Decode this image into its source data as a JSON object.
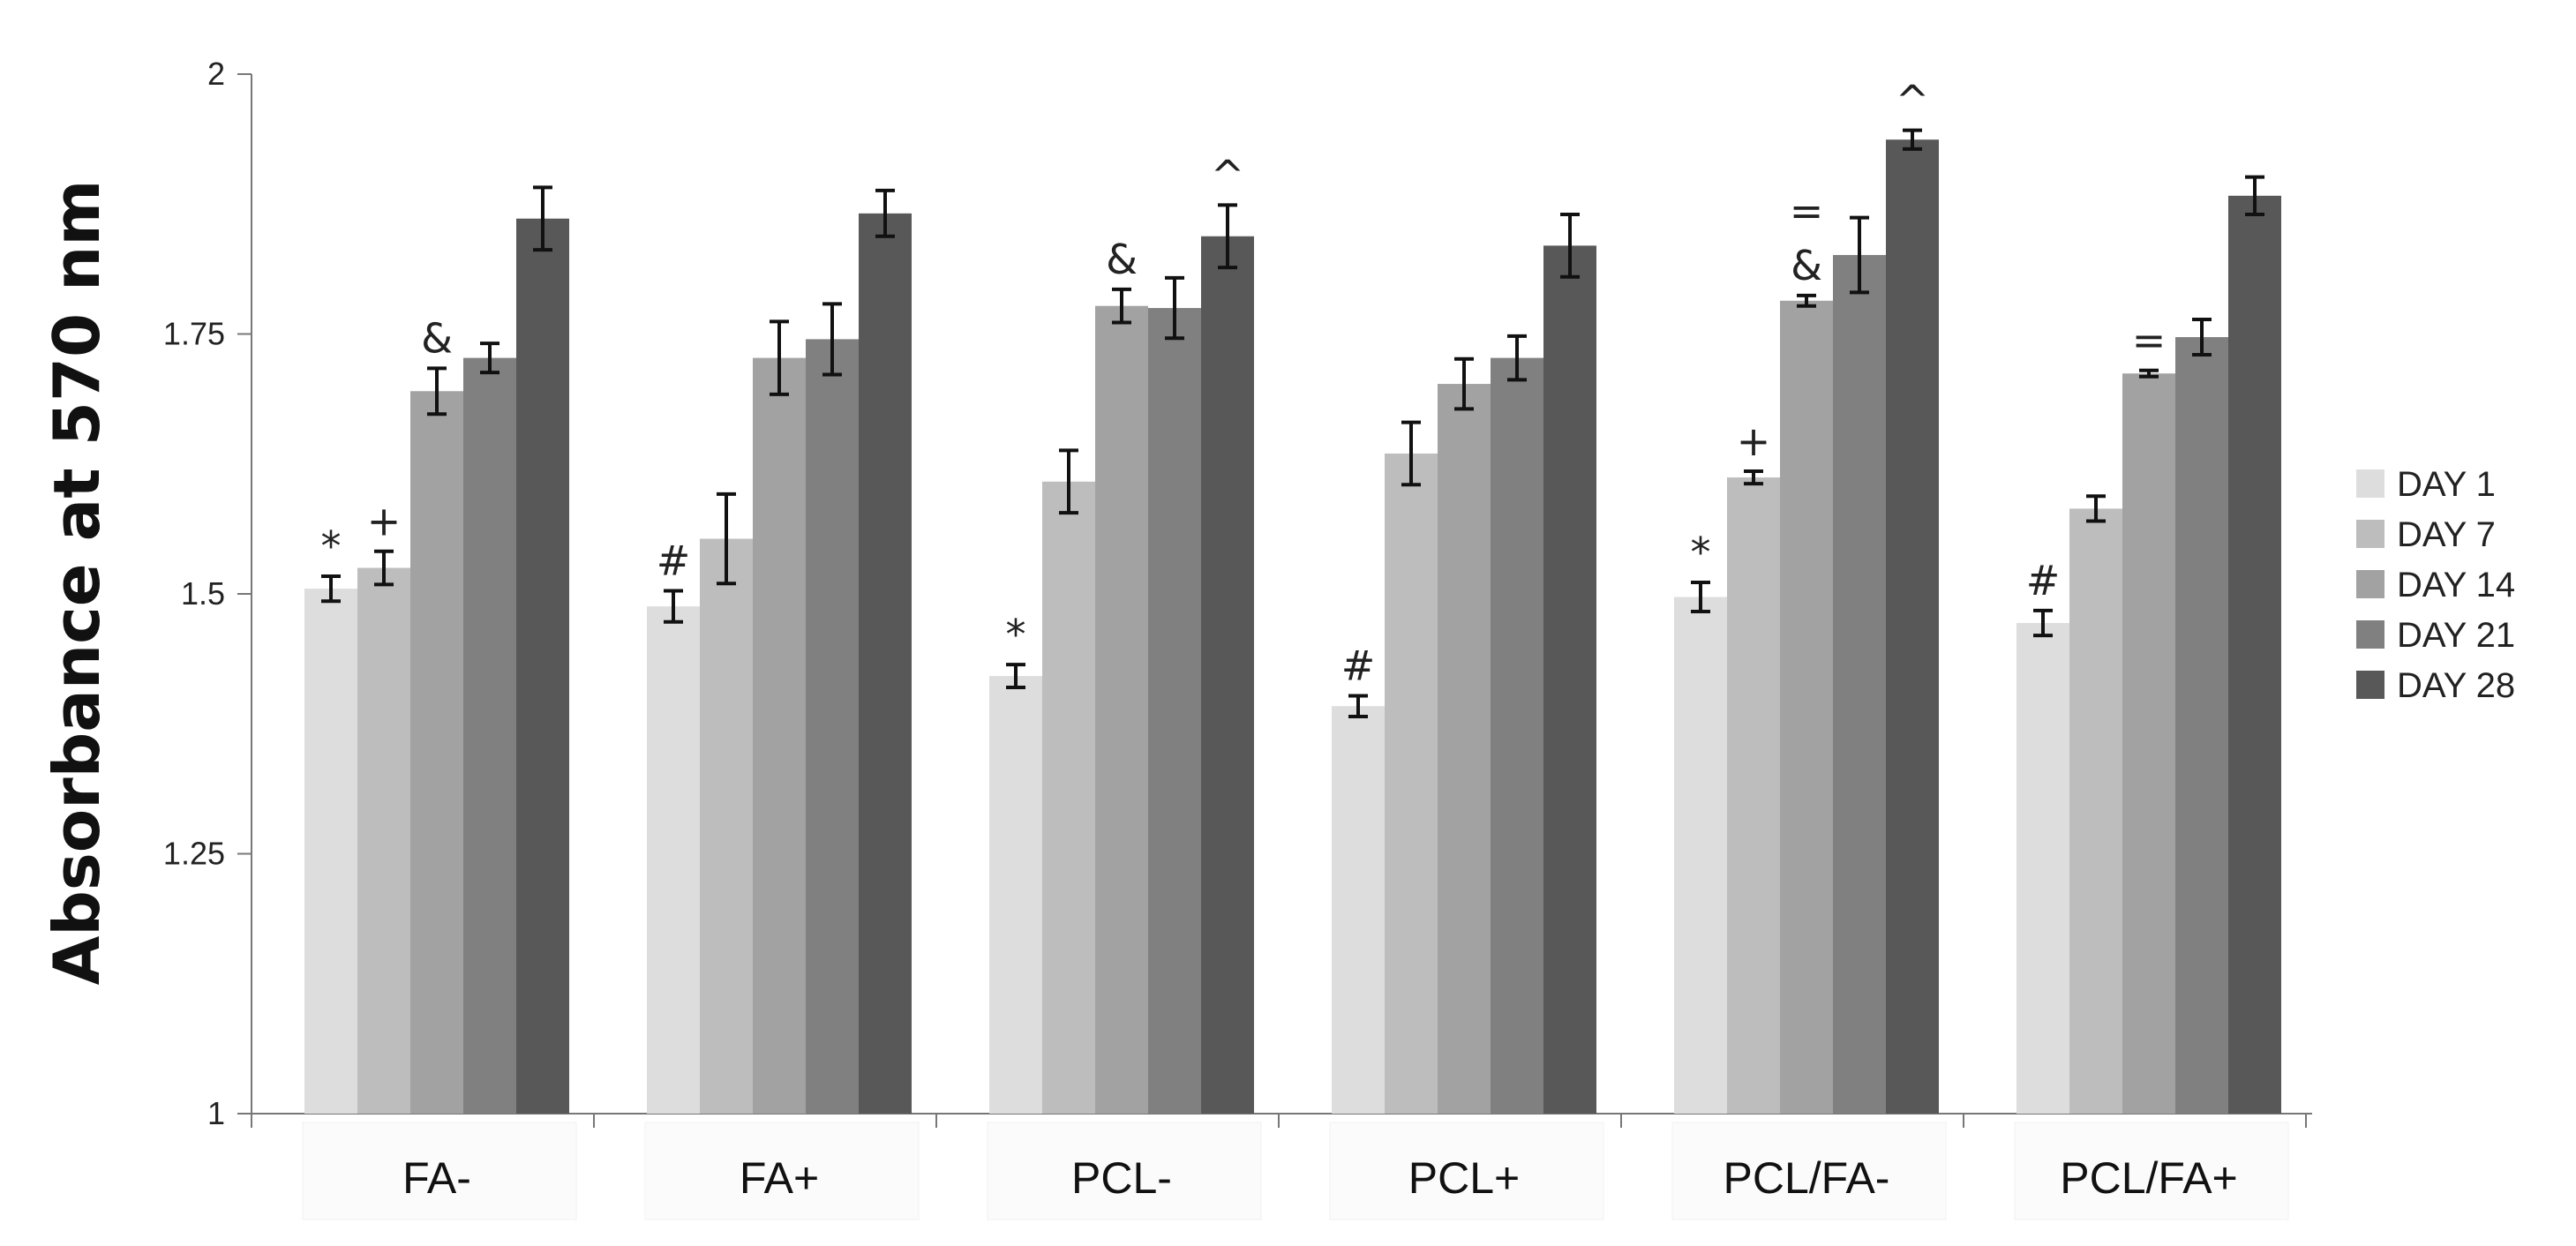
{
  "chart_data": {
    "type": "bar",
    "title": "",
    "xlabel": "",
    "ylabel": "Absorbance at 570 nm",
    "ylim": [
      1,
      2
    ],
    "yticks": [
      1,
      1.25,
      1.5,
      1.75,
      2
    ],
    "ytick_labels": [
      "1",
      "1.25",
      "1.5",
      "1.75",
      "2"
    ],
    "grid": false,
    "legend_position": "right",
    "categories": [
      "FA-",
      "FA+",
      "PCL-",
      "PCL+",
      "PCL/FA-",
      "PCL/FA+"
    ],
    "series": [
      {
        "name": "DAY 1",
        "color": "#dddddd",
        "values": [
          1.505,
          1.488,
          1.421,
          1.392,
          1.497,
          1.472
        ],
        "errors": [
          0.012,
          0.015,
          0.011,
          0.01,
          0.014,
          0.012
        ]
      },
      {
        "name": "DAY 7",
        "color": "#bdbdbd",
        "values": [
          1.525,
          1.553,
          1.608,
          1.635,
          1.612,
          1.582
        ],
        "errors": [
          0.016,
          0.043,
          0.03,
          0.03,
          0.006,
          0.012
        ]
      },
      {
        "name": "DAY 14",
        "color": "#a2a2a2",
        "values": [
          1.695,
          1.727,
          1.777,
          1.702,
          1.782,
          1.712
        ],
        "errors": [
          0.022,
          0.035,
          0.016,
          0.024,
          0.005,
          0.003
        ]
      },
      {
        "name": "DAY 21",
        "color": "#808080",
        "values": [
          1.727,
          1.745,
          1.775,
          1.727,
          1.826,
          1.747
        ],
        "errors": [
          0.014,
          0.034,
          0.029,
          0.021,
          0.036,
          0.017
        ]
      },
      {
        "name": "DAY 28",
        "color": "#585858",
        "values": [
          1.861,
          1.866,
          1.844,
          1.835,
          1.937,
          1.883
        ],
        "errors": [
          0.03,
          0.022,
          0.03,
          0.03,
          0.009,
          0.018
        ]
      }
    ],
    "annotations": [
      {
        "text": "*",
        "category": 0,
        "series": 0
      },
      {
        "text": "+",
        "category": 0,
        "series": 1
      },
      {
        "text": "&",
        "category": 0,
        "series": 2
      },
      {
        "text": "#",
        "category": 1,
        "series": 0
      },
      {
        "text": "*",
        "category": 2,
        "series": 0
      },
      {
        "text": "&",
        "category": 2,
        "series": 2
      },
      {
        "text": "^",
        "category": 2,
        "series": 4
      },
      {
        "text": "#",
        "category": 3,
        "series": 0
      },
      {
        "text": "*",
        "category": 4,
        "series": 0
      },
      {
        "text": "+",
        "category": 4,
        "series": 1
      },
      {
        "text": "&",
        "category": 4,
        "series": 2
      },
      {
        "text": "=",
        "category": 4,
        "series": 2,
        "stack": 1
      },
      {
        "text": "^",
        "category": 4,
        "series": 4
      },
      {
        "text": "#",
        "category": 5,
        "series": 0
      },
      {
        "text": "=",
        "category": 5,
        "series": 2
      }
    ]
  }
}
